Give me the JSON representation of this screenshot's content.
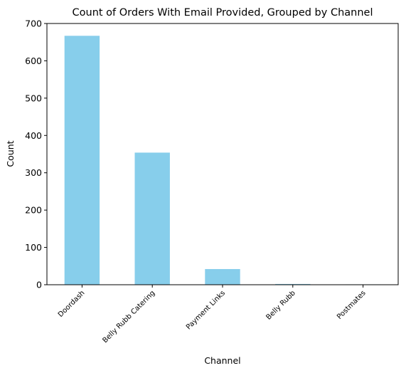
{
  "chart_data": {
    "type": "bar",
    "title": "Count of Orders With Email Provided, Grouped by Channel",
    "xlabel": "Channel",
    "ylabel": "Count",
    "categories": [
      "Doordash",
      "Belly Rubb Catering",
      "Payment Links",
      "Belly Rubb",
      "Postmates"
    ],
    "values": [
      667,
      354,
      42,
      2,
      1
    ],
    "ylim": [
      0,
      700
    ],
    "yticks": [
      0,
      100,
      200,
      300,
      400,
      500,
      600,
      700
    ],
    "bar_color": "#87CEEB",
    "grid": false,
    "legend": "none"
  }
}
